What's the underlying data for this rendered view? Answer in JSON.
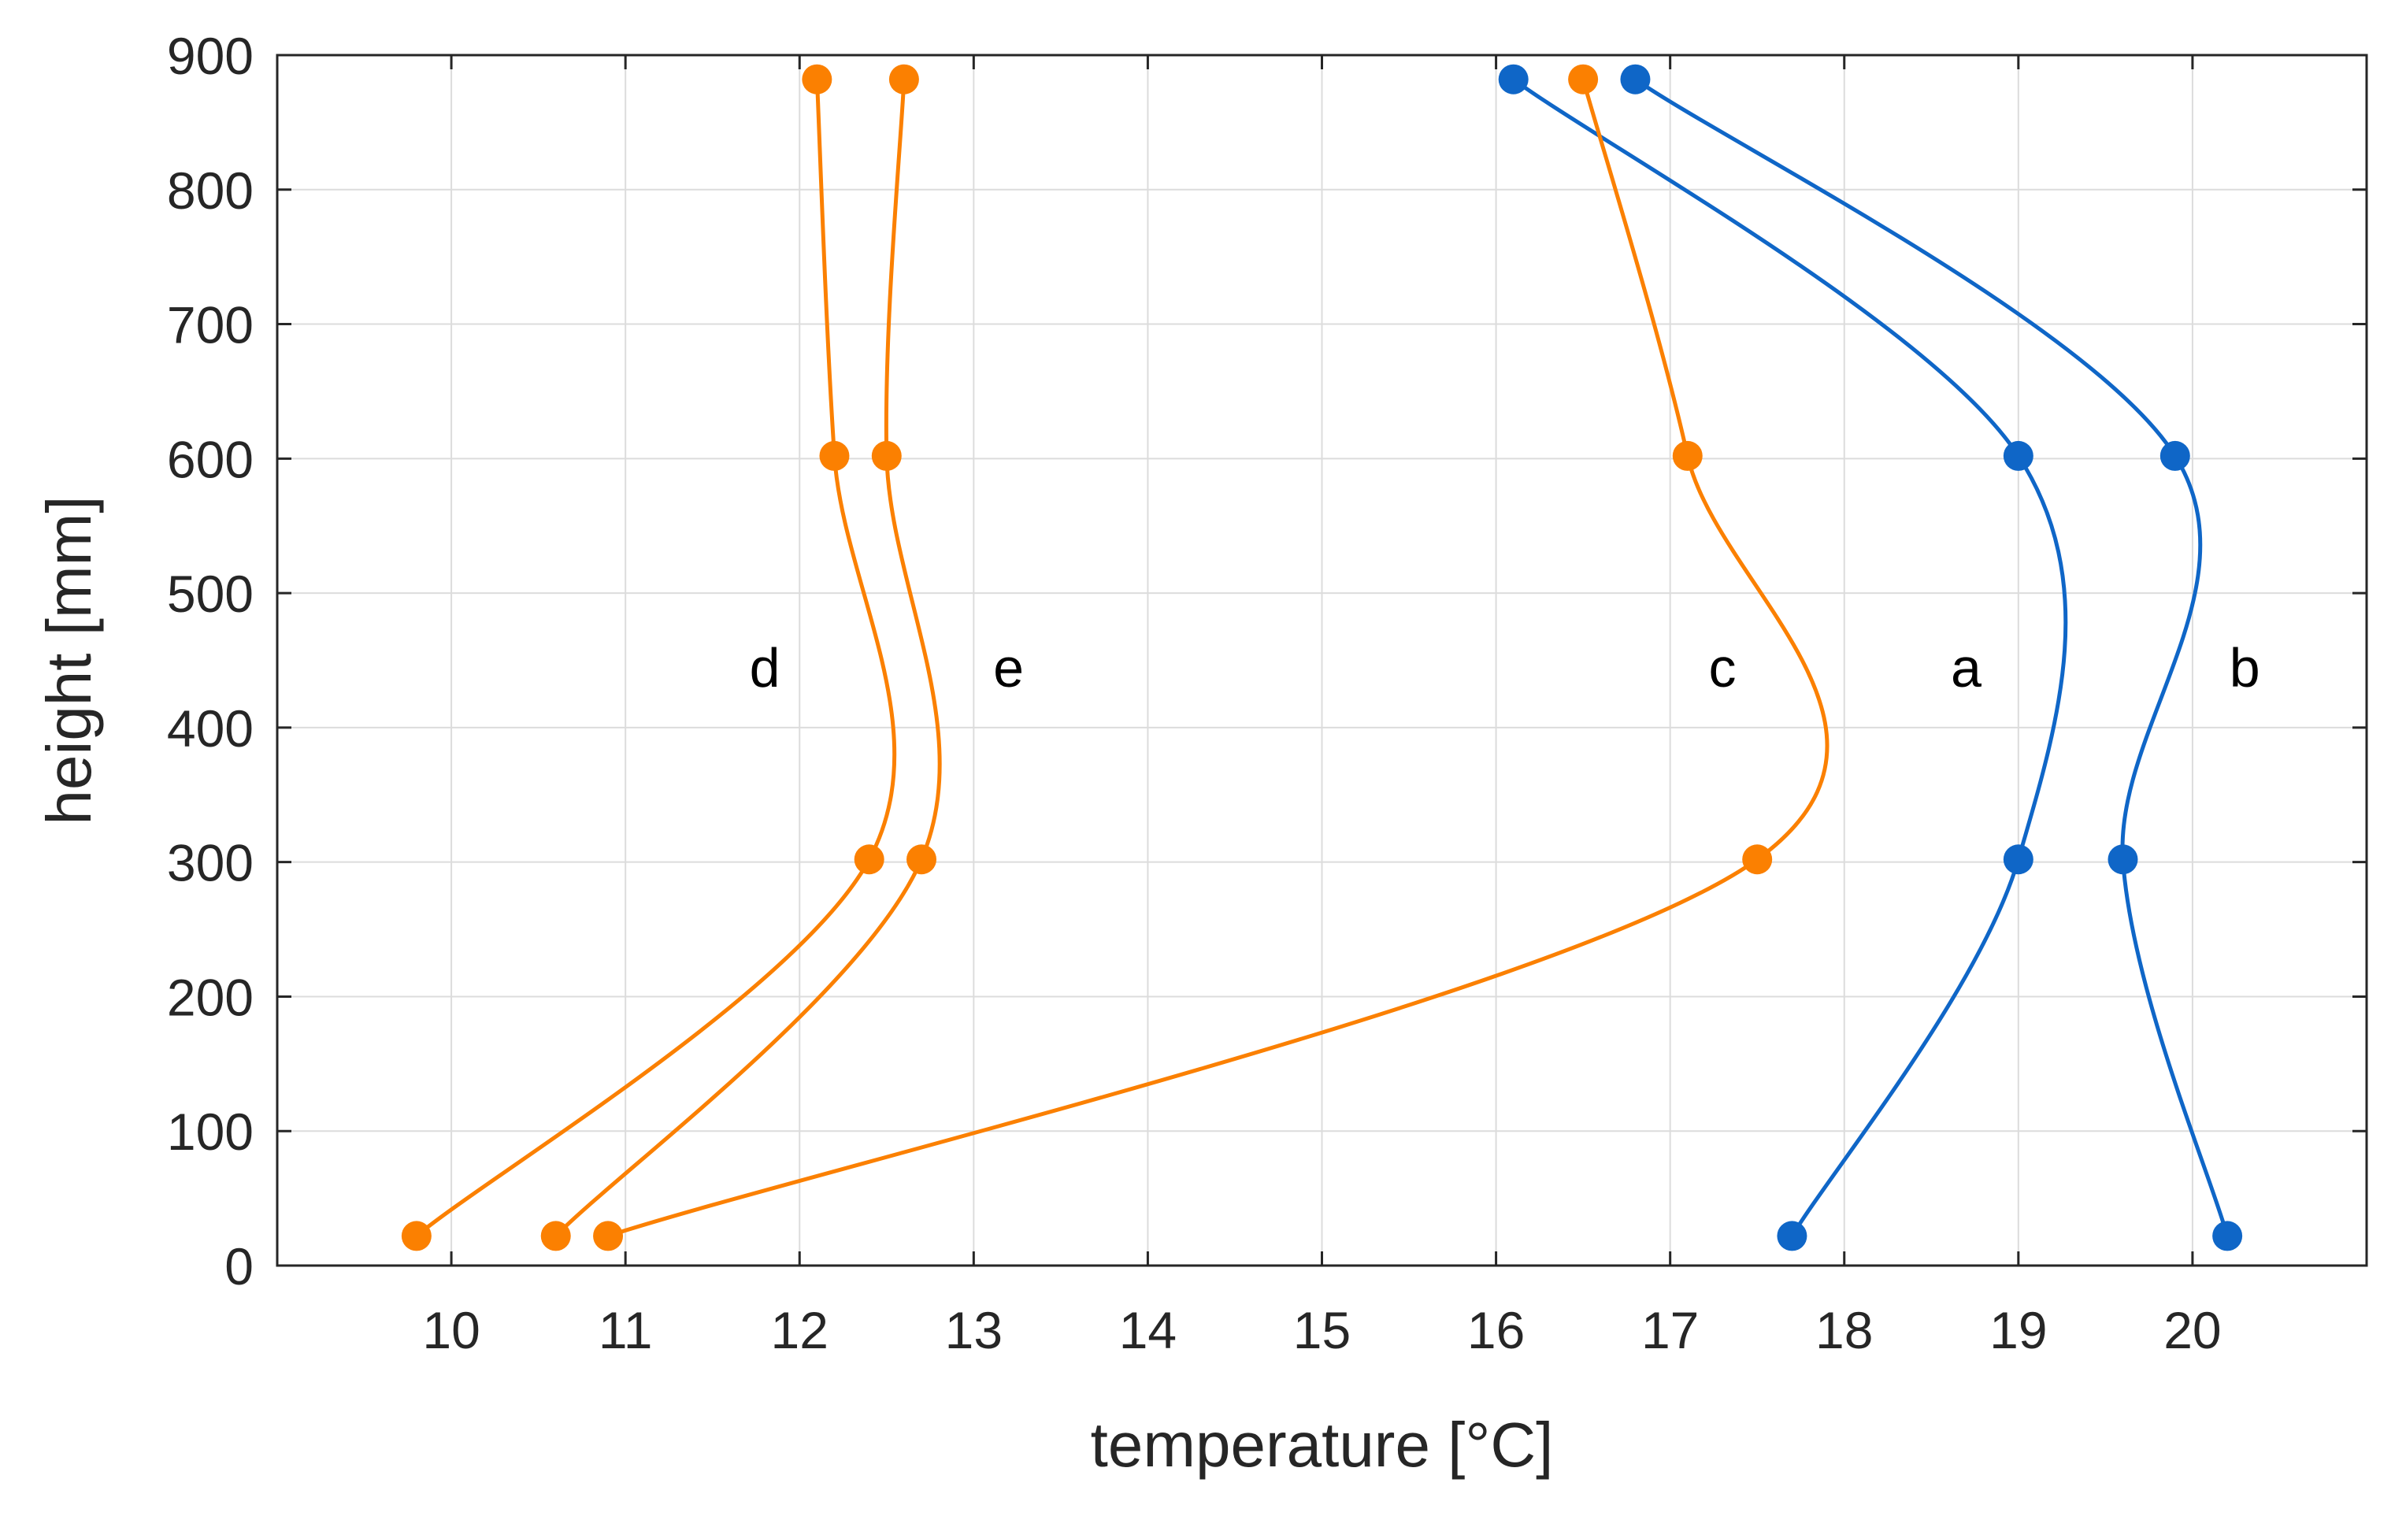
{
  "chart_data": {
    "type": "line",
    "title": "",
    "xlabel": "temperature [°C]",
    "ylabel": "height [mm]",
    "xlim": [
      9,
      21
    ],
    "ylim": [
      0,
      900
    ],
    "xticks": [
      10,
      11,
      12,
      13,
      14,
      15,
      16,
      17,
      18,
      19,
      20
    ],
    "yticks": [
      0,
      100,
      200,
      300,
      400,
      500,
      600,
      700,
      800,
      900
    ],
    "grid": true,
    "colors": {
      "blue": "#0f66c7",
      "orange": "#fb8001"
    },
    "series": [
      {
        "name": "a",
        "color": "#0f66c7",
        "label_at": [
          18.7,
          445
        ],
        "points": [
          [
            17.7,
            22
          ],
          [
            19.0,
            302
          ],
          [
            19.0,
            602
          ],
          [
            16.1,
            882
          ]
        ]
      },
      {
        "name": "b",
        "color": "#0f66c7",
        "label_at": [
          20.3,
          445
        ],
        "points": [
          [
            20.2,
            22
          ],
          [
            19.6,
            302
          ],
          [
            19.9,
            602
          ],
          [
            16.8,
            882
          ]
        ]
      },
      {
        "name": "c",
        "color": "#fb8001",
        "label_at": [
          17.3,
          445
        ],
        "points": [
          [
            10.9,
            22
          ],
          [
            17.5,
            302
          ],
          [
            17.1,
            602
          ],
          [
            16.5,
            882
          ]
        ]
      },
      {
        "name": "d",
        "color": "#fb8001",
        "label_at": [
          11.8,
          445
        ],
        "points": [
          [
            9.8,
            22
          ],
          [
            12.4,
            302
          ],
          [
            12.2,
            602
          ],
          [
            12.1,
            882
          ]
        ]
      },
      {
        "name": "e",
        "color": "#fb8001",
        "label_at": [
          13.2,
          445
        ],
        "points": [
          [
            10.6,
            22
          ],
          [
            12.7,
            302
          ],
          [
            12.5,
            602
          ],
          [
            12.6,
            882
          ]
        ]
      }
    ]
  }
}
